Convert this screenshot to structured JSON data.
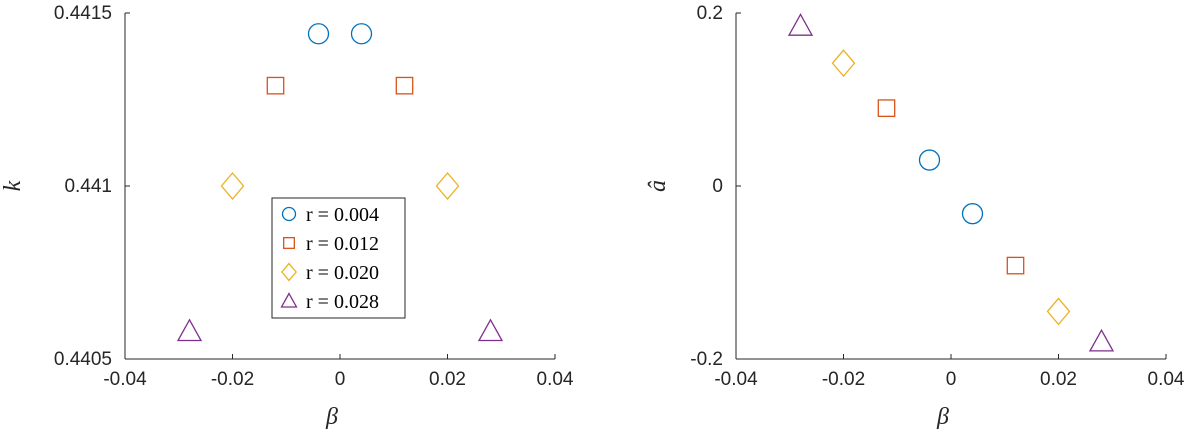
{
  "chart_data": [
    {
      "type": "scatter",
      "xlabel": "β",
      "ylabel": "k",
      "xlim": [
        -0.04,
        0.04
      ],
      "ylim": [
        0.4405,
        0.4415
      ],
      "x_ticks": [
        "-0.04",
        "-0.02",
        "0",
        "0.02",
        "0.04"
      ],
      "y_ticks": [
        "0.4405",
        "0.441",
        "0.4415"
      ],
      "legend_position": "center",
      "series": [
        {
          "name": "r = 0.004",
          "marker": "circle",
          "color": "#0072BD",
          "points": [
            [
              -0.004,
              0.44144
            ],
            [
              0.004,
              0.44144
            ]
          ]
        },
        {
          "name": "r = 0.012",
          "marker": "square",
          "color": "#D95319",
          "points": [
            [
              -0.012,
              0.44129
            ],
            [
              0.012,
              0.44129
            ]
          ]
        },
        {
          "name": "r = 0.020",
          "marker": "diamond",
          "color": "#EDB120",
          "points": [
            [
              -0.02,
              0.441
            ],
            [
              0.02,
              0.441
            ]
          ]
        },
        {
          "name": "r = 0.028",
          "marker": "triangle",
          "color": "#7E2F8E",
          "points": [
            [
              -0.028,
              0.44058
            ],
            [
              0.028,
              0.44058
            ]
          ]
        }
      ]
    },
    {
      "type": "scatter",
      "xlabel": "β",
      "ylabel": "â",
      "xlim": [
        -0.04,
        0.04
      ],
      "ylim": [
        -0.2,
        0.2
      ],
      "x_ticks": [
        "-0.04",
        "-0.02",
        "0",
        "0.02",
        "0.04"
      ],
      "y_ticks": [
        "-0.2",
        "0",
        "0.2"
      ],
      "series": [
        {
          "marker": "circle",
          "color": "#0072BD",
          "points": [
            [
              -0.004,
              0.03
            ],
            [
              0.004,
              -0.032
            ]
          ]
        },
        {
          "marker": "square",
          "color": "#D95319",
          "points": [
            [
              -0.012,
              0.09
            ],
            [
              0.012,
              -0.092
            ]
          ]
        },
        {
          "marker": "diamond",
          "color": "#EDB120",
          "points": [
            [
              -0.02,
              0.142
            ],
            [
              0.02,
              -0.145
            ]
          ]
        },
        {
          "marker": "triangle",
          "color": "#7E2F8E",
          "points": [
            [
              -0.028,
              0.185
            ],
            [
              0.028,
              -0.18
            ]
          ]
        }
      ]
    }
  ]
}
